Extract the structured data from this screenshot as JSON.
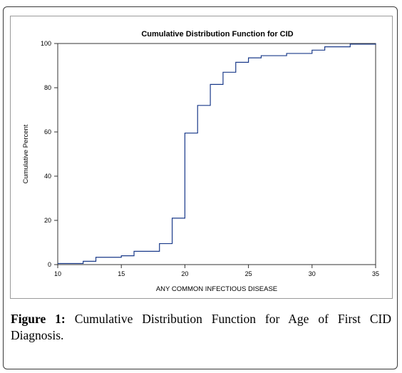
{
  "chart_data": {
    "type": "line",
    "step": true,
    "title": "Cumulative Distribution Function for CID",
    "xlabel": "ANY COMMON INFECTIOUS DISEASE",
    "ylabel": "Cumulative Percent",
    "xlim": [
      10,
      35
    ],
    "ylim": [
      0,
      100
    ],
    "xticks": [
      10,
      15,
      20,
      25,
      30,
      35
    ],
    "yticks": [
      0,
      20,
      40,
      60,
      80,
      100
    ],
    "grid": false,
    "line_color": "#1a3a8a",
    "x": [
      10,
      12,
      13,
      15,
      16,
      18,
      19,
      20,
      21,
      22,
      23,
      24,
      25,
      26,
      28,
      30,
      31,
      33,
      35
    ],
    "y": [
      0.5,
      1.5,
      3.3,
      4,
      6,
      9.5,
      21,
      59.5,
      72,
      81.5,
      87,
      91.5,
      93.5,
      94.5,
      95.5,
      97,
      98.5,
      99.7,
      100
    ]
  },
  "caption": {
    "label": "Figure 1:",
    "text": "Cumulative Distribution Function for Age of First CID Diagnosis."
  }
}
